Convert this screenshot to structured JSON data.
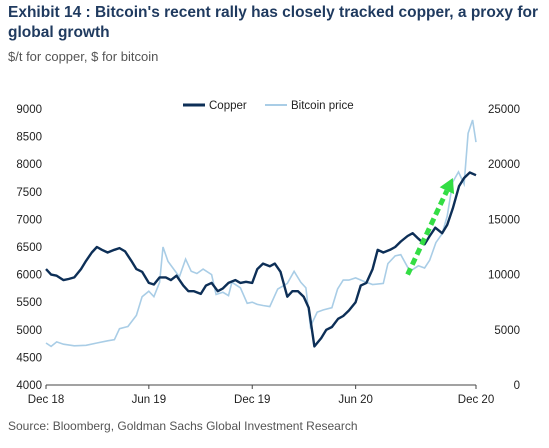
{
  "header": {
    "title": "Exhibit 14 : Bitcoin's recent rally has closely tracked copper, a proxy for global growth",
    "subtitle": "$/t for copper, $ for bitcoin"
  },
  "footer": {
    "source": "Source: Bloomberg, Goldman Sachs Global Investment Research"
  },
  "chart_data": {
    "type": "line",
    "xlabel": "",
    "x_ticks": [
      "Dec 18",
      "Jun 19",
      "Dec 19",
      "Jun 20",
      "Dec 20"
    ],
    "y_left": {
      "label": "",
      "lim": [
        4000,
        9000
      ],
      "ticks": [
        4000,
        4500,
        5000,
        5500,
        6000,
        6500,
        7000,
        7500,
        8000,
        8500,
        9000
      ]
    },
    "y_right": {
      "label": "",
      "lim": [
        0,
        25000
      ],
      "ticks": [
        0,
        5000,
        10000,
        15000,
        20000,
        25000
      ]
    },
    "grid": false,
    "legend": {
      "placement": "top-center"
    },
    "series": [
      {
        "name": "Copper",
        "axis": "left",
        "color": "#0d2f57",
        "points": [
          [
            "2018-12-01",
            6100
          ],
          [
            "2018-12-10",
            6000
          ],
          [
            "2018-12-20",
            5980
          ],
          [
            "2019-01-01",
            5900
          ],
          [
            "2019-01-10",
            5920
          ],
          [
            "2019-01-20",
            5950
          ],
          [
            "2019-02-01",
            6100
          ],
          [
            "2019-02-10",
            6250
          ],
          [
            "2019-02-20",
            6400
          ],
          [
            "2019-03-01",
            6500
          ],
          [
            "2019-03-10",
            6450
          ],
          [
            "2019-03-20",
            6400
          ],
          [
            "2019-04-01",
            6450
          ],
          [
            "2019-04-10",
            6480
          ],
          [
            "2019-04-20",
            6420
          ],
          [
            "2019-05-01",
            6250
          ],
          [
            "2019-05-10",
            6100
          ],
          [
            "2019-05-20",
            6050
          ],
          [
            "2019-06-01",
            5850
          ],
          [
            "2019-06-10",
            5820
          ],
          [
            "2019-06-20",
            5950
          ],
          [
            "2019-07-01",
            5950
          ],
          [
            "2019-07-10",
            5900
          ],
          [
            "2019-07-20",
            5980
          ],
          [
            "2019-08-01",
            5800
          ],
          [
            "2019-08-10",
            5700
          ],
          [
            "2019-08-20",
            5700
          ],
          [
            "2019-09-01",
            5650
          ],
          [
            "2019-09-10",
            5800
          ],
          [
            "2019-09-20",
            5850
          ],
          [
            "2019-10-01",
            5700
          ],
          [
            "2019-10-10",
            5750
          ],
          [
            "2019-10-20",
            5850
          ],
          [
            "2019-11-01",
            5900
          ],
          [
            "2019-11-10",
            5850
          ],
          [
            "2019-11-20",
            5870
          ],
          [
            "2019-12-01",
            5850
          ],
          [
            "2019-12-10",
            6100
          ],
          [
            "2019-12-20",
            6200
          ],
          [
            "2020-01-01",
            6150
          ],
          [
            "2020-01-10",
            6200
          ],
          [
            "2020-01-20",
            6050
          ],
          [
            "2020-02-01",
            5600
          ],
          [
            "2020-02-10",
            5700
          ],
          [
            "2020-02-20",
            5700
          ],
          [
            "2020-03-01",
            5600
          ],
          [
            "2020-03-10",
            5400
          ],
          [
            "2020-03-20",
            4700
          ],
          [
            "2020-04-01",
            4850
          ],
          [
            "2020-04-10",
            5000
          ],
          [
            "2020-04-20",
            5050
          ],
          [
            "2020-05-01",
            5200
          ],
          [
            "2020-05-10",
            5250
          ],
          [
            "2020-05-20",
            5350
          ],
          [
            "2020-06-01",
            5500
          ],
          [
            "2020-06-10",
            5800
          ],
          [
            "2020-06-20",
            5850
          ],
          [
            "2020-07-01",
            6100
          ],
          [
            "2020-07-10",
            6450
          ],
          [
            "2020-07-20",
            6400
          ],
          [
            "2020-08-01",
            6450
          ],
          [
            "2020-08-10",
            6500
          ],
          [
            "2020-08-20",
            6600
          ],
          [
            "2020-09-01",
            6700
          ],
          [
            "2020-09-10",
            6750
          ],
          [
            "2020-09-20",
            6650
          ],
          [
            "2020-10-01",
            6550
          ],
          [
            "2020-10-10",
            6700
          ],
          [
            "2020-10-20",
            6850
          ],
          [
            "2020-11-01",
            6750
          ],
          [
            "2020-11-10",
            6900
          ],
          [
            "2020-11-20",
            7200
          ],
          [
            "2020-12-01",
            7600
          ],
          [
            "2020-12-10",
            7750
          ],
          [
            "2020-12-20",
            7850
          ],
          [
            "2020-12-31",
            7800
          ]
        ]
      },
      {
        "name": "Bitcoin price",
        "axis": "right",
        "color": "#a9cde6",
        "points": [
          [
            "2018-12-01",
            3800
          ],
          [
            "2018-12-10",
            3500
          ],
          [
            "2018-12-20",
            3900
          ],
          [
            "2019-01-01",
            3700
          ],
          [
            "2019-01-20",
            3550
          ],
          [
            "2019-02-10",
            3600
          ],
          [
            "2019-03-01",
            3800
          ],
          [
            "2019-03-20",
            4000
          ],
          [
            "2019-04-01",
            4100
          ],
          [
            "2019-04-10",
            5100
          ],
          [
            "2019-04-25",
            5300
          ],
          [
            "2019-05-10",
            6300
          ],
          [
            "2019-05-20",
            8000
          ],
          [
            "2019-06-01",
            8500
          ],
          [
            "2019-06-10",
            8000
          ],
          [
            "2019-06-20",
            9300
          ],
          [
            "2019-06-26",
            12500
          ],
          [
            "2019-07-05",
            11200
          ],
          [
            "2019-07-15",
            10500
          ],
          [
            "2019-07-25",
            9800
          ],
          [
            "2019-08-05",
            11400
          ],
          [
            "2019-08-15",
            10300
          ],
          [
            "2019-08-25",
            10100
          ],
          [
            "2019-09-05",
            10500
          ],
          [
            "2019-09-20",
            10000
          ],
          [
            "2019-09-28",
            8200
          ],
          [
            "2019-10-10",
            8400
          ],
          [
            "2019-10-20",
            8100
          ],
          [
            "2019-10-26",
            9300
          ],
          [
            "2019-11-10",
            8800
          ],
          [
            "2019-11-22",
            7400
          ],
          [
            "2019-12-01",
            7500
          ],
          [
            "2019-12-10",
            7300
          ],
          [
            "2019-12-20",
            7200
          ],
          [
            "2020-01-01",
            7100
          ],
          [
            "2020-01-15",
            8700
          ],
          [
            "2020-02-01",
            9200
          ],
          [
            "2020-02-13",
            10300
          ],
          [
            "2020-02-25",
            9300
          ],
          [
            "2020-03-05",
            8800
          ],
          [
            "2020-03-13",
            5300
          ],
          [
            "2020-03-25",
            6600
          ],
          [
            "2020-04-05",
            6800
          ],
          [
            "2020-04-20",
            7000
          ],
          [
            "2020-04-30",
            8700
          ],
          [
            "2020-05-10",
            9500
          ],
          [
            "2020-05-20",
            9500
          ],
          [
            "2020-06-01",
            9700
          ],
          [
            "2020-06-15",
            9400
          ],
          [
            "2020-07-01",
            9100
          ],
          [
            "2020-07-20",
            9200
          ],
          [
            "2020-07-28",
            11000
          ],
          [
            "2020-08-10",
            11700
          ],
          [
            "2020-08-20",
            11800
          ],
          [
            "2020-09-05",
            10300
          ],
          [
            "2020-09-20",
            10800
          ],
          [
            "2020-10-01",
            10600
          ],
          [
            "2020-10-10",
            11300
          ],
          [
            "2020-10-21",
            12900
          ],
          [
            "2020-11-01",
            13700
          ],
          [
            "2020-11-10",
            15300
          ],
          [
            "2020-11-20",
            18400
          ],
          [
            "2020-11-30",
            19300
          ],
          [
            "2020-12-10",
            18200
          ],
          [
            "2020-12-17",
            22800
          ],
          [
            "2020-12-25",
            24000
          ],
          [
            "2020-12-31",
            22000
          ]
        ]
      }
    ],
    "annotation": {
      "type": "arrow",
      "color": "#33dd44",
      "style": "dashed",
      "from": [
        "2020-09-01",
        6000
      ],
      "to": [
        "2020-11-20",
        7750
      ]
    }
  }
}
